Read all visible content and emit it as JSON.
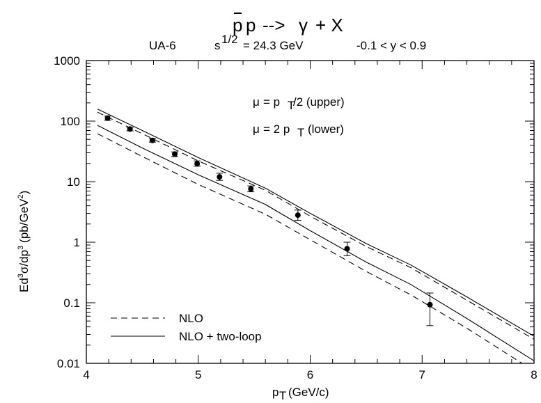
{
  "title_parts": {
    "p1": "p",
    "p2": "p",
    "arrow": "-->",
    "gamma": "γ",
    "tail": "+ X"
  },
  "subtitle": {
    "experiment": "UA-6",
    "energy_base": "s",
    "energy_sup": "1/2",
    "energy_rest": "= 24.3 GeV",
    "rapidity": "-0.1 < y < 0.9"
  },
  "annotations": {
    "upper": {
      "mu": "μ",
      "eq": "= p",
      "sub": "T",
      "rest": "/2 (upper)"
    },
    "lower": {
      "mu": "μ",
      "eq": "= 2 p",
      "sub": "T",
      "rest": "(lower)"
    }
  },
  "axes": {
    "xlabel": {
      "base": "p",
      "sub": "T",
      "rest": "(GeV/c)"
    },
    "ylabel": {
      "a": "Ed",
      "a_sup": "3",
      "b": "σ/dp",
      "b_sup": "3",
      "c": "(pb/GeV",
      "c_sup": "2",
      "d": ")"
    }
  },
  "chart_data": {
    "type": "line",
    "xlim": [
      4,
      8
    ],
    "ylim": [
      0.01,
      1000
    ],
    "yscale": "log",
    "xticks": [
      4,
      5,
      6,
      7,
      8
    ],
    "yticks": [
      0.01,
      0.1,
      1,
      10,
      100,
      1000
    ],
    "xtick_labels": [
      "4",
      "5",
      "6",
      "7",
      "8"
    ],
    "ytick_labels": [
      "0.01",
      "0.1",
      "1",
      "10",
      "100",
      "1000"
    ],
    "legend_position": "bottom-left",
    "legend": [
      {
        "label": "NLO",
        "style": "dashed"
      },
      {
        "label": "NLO + two-loop",
        "style": "solid"
      }
    ],
    "series": [
      {
        "style": "dashed",
        "scale": "upper",
        "x": [
          4.1,
          4.5,
          5.0,
          5.6,
          6.0,
          6.5,
          6.9,
          7.4,
          8.0
        ],
        "y": [
          140,
          62,
          22,
          7.2,
          2.7,
          0.85,
          0.38,
          0.11,
          0.025
        ]
      },
      {
        "style": "solid",
        "scale": "upper",
        "x": [
          4.1,
          4.5,
          5.0,
          5.6,
          6.0,
          6.5,
          6.9,
          7.4,
          8.0
        ],
        "y": [
          158,
          70,
          25,
          7.8,
          3.0,
          0.95,
          0.42,
          0.125,
          0.028
        ]
      },
      {
        "style": "dashed",
        "scale": "lower",
        "x": [
          4.1,
          4.5,
          5.0,
          5.6,
          6.0,
          6.5,
          6.9,
          7.4,
          8.0
        ],
        "y": [
          62,
          26,
          9.0,
          2.9,
          1.1,
          0.33,
          0.135,
          0.038,
          0.0075
        ]
      },
      {
        "style": "solid",
        "scale": "lower",
        "x": [
          4.1,
          4.5,
          5.0,
          5.6,
          6.0,
          6.5,
          6.9,
          7.4,
          8.0
        ],
        "y": [
          85,
          36,
          13,
          4.2,
          1.55,
          0.47,
          0.2,
          0.055,
          0.011
        ]
      }
    ],
    "points": [
      {
        "x": 4.19,
        "y": 112,
        "err": [
          103,
          121
        ]
      },
      {
        "x": 4.39,
        "y": 74,
        "err": [
          69,
          79
        ]
      },
      {
        "x": 4.59,
        "y": 48,
        "err": [
          45,
          52
        ]
      },
      {
        "x": 4.79,
        "y": 28.5,
        "err": [
          26,
          31
        ]
      },
      {
        "x": 4.99,
        "y": 19.8,
        "err": [
          18,
          22
        ]
      },
      {
        "x": 5.19,
        "y": 12.0,
        "err": [
          10.5,
          13.8
        ]
      },
      {
        "x": 5.47,
        "y": 7.6,
        "err": [
          6.8,
          8.5
        ]
      },
      {
        "x": 5.89,
        "y": 2.8,
        "err": [
          2.3,
          3.4
        ]
      },
      {
        "x": 6.33,
        "y": 0.78,
        "err": [
          0.6,
          1.0
        ]
      },
      {
        "x": 7.07,
        "y": 0.093,
        "err": [
          0.042,
          0.145
        ]
      }
    ]
  }
}
